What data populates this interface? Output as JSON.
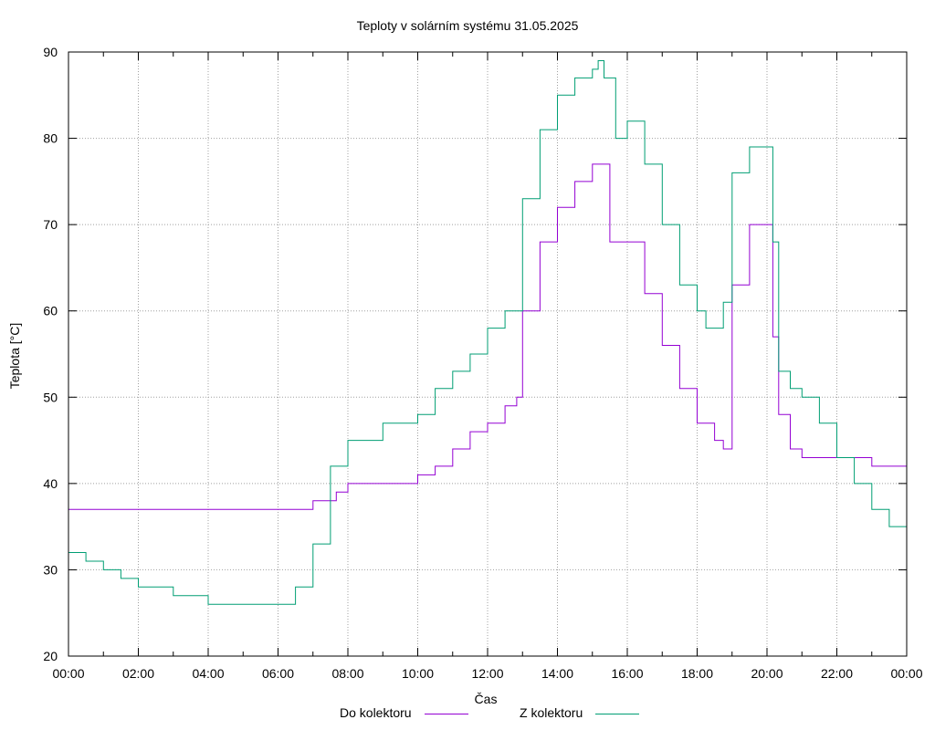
{
  "chart_data": {
    "type": "line",
    "title": "Teploty v solárním systému 31.05.2025",
    "xlabel": "Čas",
    "ylabel": "Teplota [°C]",
    "xlim": [
      "00:00",
      "24:00"
    ],
    "ylim": [
      20,
      90
    ],
    "grid": true,
    "legend_position": "bottom",
    "x_ticks": [
      "00:00",
      "02:00",
      "04:00",
      "06:00",
      "08:00",
      "10:00",
      "12:00",
      "14:00",
      "16:00",
      "18:00",
      "20:00",
      "22:00",
      "00:00"
    ],
    "y_ticks": [
      20,
      30,
      40,
      50,
      60,
      70,
      80,
      90
    ],
    "series": [
      {
        "name": "Do kolektoru",
        "color": "#9400d3",
        "x": [
          "00:00",
          "01:00",
          "02:00",
          "03:00",
          "04:00",
          "05:00",
          "06:00",
          "06:30",
          "07:00",
          "07:20",
          "07:40",
          "08:00",
          "09:00",
          "10:00",
          "10:30",
          "11:00",
          "11:30",
          "12:00",
          "12:30",
          "12:50",
          "13:00",
          "13:30",
          "14:00",
          "14:30",
          "15:00",
          "15:15",
          "15:30",
          "16:00",
          "16:30",
          "17:00",
          "17:30",
          "18:00",
          "18:30",
          "18:45",
          "19:00",
          "19:30",
          "20:00",
          "20:10",
          "20:20",
          "20:40",
          "21:00",
          "22:00",
          "23:00",
          "24:00"
        ],
        "y": [
          37,
          37,
          37,
          37,
          37,
          37,
          37,
          37,
          38,
          38,
          39,
          40,
          40,
          41,
          42,
          44,
          46,
          47,
          49,
          50,
          60,
          68,
          72,
          75,
          77,
          77,
          68,
          68,
          62,
          56,
          51,
          47,
          45,
          44,
          63,
          70,
          70,
          57,
          48,
          44,
          43,
          43,
          42,
          42
        ]
      },
      {
        "name": "Z kolektoru",
        "color": "#009e73",
        "x": [
          "00:00",
          "00:30",
          "01:00",
          "01:30",
          "02:00",
          "02:30",
          "03:00",
          "04:00",
          "05:00",
          "06:00",
          "06:30",
          "07:00",
          "07:30",
          "08:00",
          "09:00",
          "10:00",
          "10:30",
          "11:00",
          "11:30",
          "12:00",
          "12:30",
          "13:00",
          "13:30",
          "14:00",
          "14:30",
          "15:00",
          "15:10",
          "15:20",
          "15:40",
          "16:00",
          "16:30",
          "17:00",
          "17:30",
          "18:00",
          "18:15",
          "18:30",
          "18:45",
          "19:00",
          "19:30",
          "20:00",
          "20:10",
          "20:20",
          "20:40",
          "21:00",
          "21:30",
          "22:00",
          "22:30",
          "23:00",
          "23:30",
          "24:00"
        ],
        "y": [
          32,
          31,
          30,
          29,
          28,
          28,
          27,
          26,
          26,
          26,
          28,
          33,
          42,
          45,
          47,
          48,
          51,
          53,
          55,
          58,
          60,
          73,
          81,
          85,
          87,
          88,
          89,
          87,
          80,
          82,
          77,
          70,
          63,
          60,
          58,
          58,
          61,
          76,
          79,
          79,
          68,
          53,
          51,
          50,
          47,
          43,
          40,
          37,
          35,
          33
        ]
      }
    ]
  }
}
